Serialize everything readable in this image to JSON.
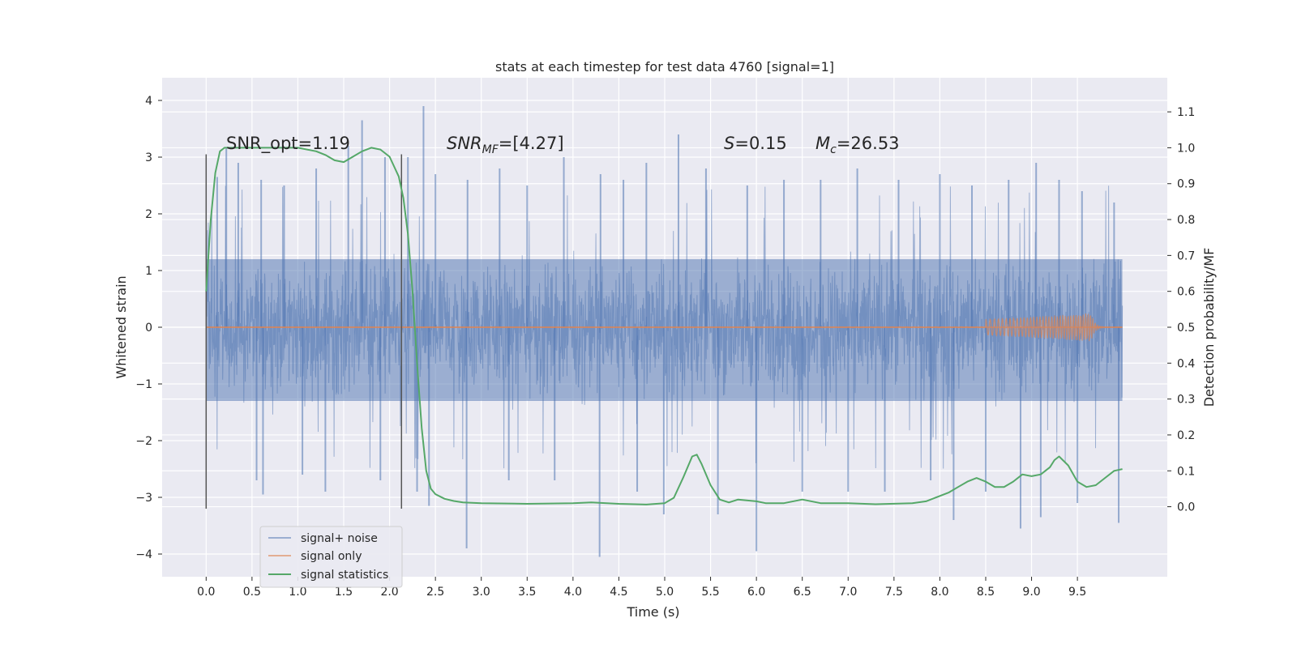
{
  "chart_data": {
    "type": "line",
    "title": "stats at each timestep for test data 4760 [signal=1]",
    "xlabel": "Time (s)",
    "ylabel_left": "Whitened strain",
    "ylabel_right": "Detection probability/MF",
    "xlim": [
      -0.48,
      10.48
    ],
    "ylim_left": [
      -4.4,
      4.4
    ],
    "ylim_right": [
      -0.195,
      1.195
    ],
    "xticks": [
      "0.0",
      "0.5",
      "1.0",
      "1.5",
      "2.0",
      "2.5",
      "3.0",
      "3.5",
      "4.0",
      "4.5",
      "5.0",
      "5.5",
      "6.0",
      "6.5",
      "7.0",
      "7.5",
      "8.0",
      "8.5",
      "9.0",
      "9.5"
    ],
    "xtick_values": [
      0,
      0.5,
      1,
      1.5,
      2,
      2.5,
      3,
      3.5,
      4,
      4.5,
      5,
      5.5,
      6,
      6.5,
      7,
      7.5,
      8,
      8.5,
      9,
      9.5
    ],
    "yticks_left": [
      "−4",
      "−3",
      "−2",
      "−1",
      "0",
      "1",
      "2",
      "3",
      "4"
    ],
    "ytick_left_values": [
      -4,
      -3,
      -2,
      -1,
      0,
      1,
      2,
      3,
      4
    ],
    "yticks_right": [
      "0.0",
      "0.1",
      "0.2",
      "0.3",
      "0.4",
      "0.5",
      "0.6",
      "0.7",
      "0.8",
      "0.9",
      "1.0",
      "1.1"
    ],
    "ytick_right_values": [
      0,
      0.1,
      0.2,
      0.3,
      0.4,
      0.5,
      0.6,
      0.7,
      0.8,
      0.9,
      1.0,
      1.1
    ],
    "annotations": {
      "snr_opt": "SNR_opt=1.19",
      "snr_mf_main": "SNR",
      "snr_mf_sub": "MF",
      "snr_mf_tail": "=[4.27]",
      "s_main": "S",
      "s_tail": "=0.15",
      "mc_main": "M",
      "mc_sub": "c",
      "mc_tail": "=26.53"
    },
    "vlines": [
      {
        "x": 0.0,
        "ymin": -3.2,
        "ymax": 3.05
      },
      {
        "x": 2.13,
        "ymin": -3.2,
        "ymax": 3.05
      }
    ],
    "grid": true,
    "legend_position": "lower-left",
    "series": [
      {
        "name": "signal+ noise",
        "axis": "left",
        "color": "#4c72b0",
        "kind": "noise",
        "x_range": [
          0,
          9.99
        ],
        "typical_envelope": [
          -1.3,
          1.2
        ],
        "peaks": [
          {
            "x": 0.12,
            "y": 2.65
          },
          {
            "x": 0.22,
            "y": 3.15
          },
          {
            "x": 0.35,
            "y": 2.9
          },
          {
            "x": 0.6,
            "y": 2.6
          },
          {
            "x": 0.85,
            "y": 2.5
          },
          {
            "x": 1.2,
            "y": 2.8
          },
          {
            "x": 1.55,
            "y": 3.2
          },
          {
            "x": 1.7,
            "y": 3.65
          },
          {
            "x": 1.95,
            "y": 3.0
          },
          {
            "x": 2.2,
            "y": 3.0
          },
          {
            "x": 2.37,
            "y": 3.9
          },
          {
            "x": 2.5,
            "y": 2.7
          },
          {
            "x": 2.85,
            "y": 2.6
          },
          {
            "x": 3.2,
            "y": 2.8
          },
          {
            "x": 3.5,
            "y": 2.5
          },
          {
            "x": 3.9,
            "y": 3.0
          },
          {
            "x": 4.3,
            "y": 2.7
          },
          {
            "x": 4.55,
            "y": 2.6
          },
          {
            "x": 4.8,
            "y": 2.9
          },
          {
            "x": 5.15,
            "y": 3.4
          },
          {
            "x": 5.45,
            "y": 2.8
          },
          {
            "x": 5.9,
            "y": 2.5
          },
          {
            "x": 6.3,
            "y": 2.6
          },
          {
            "x": 6.7,
            "y": 2.6
          },
          {
            "x": 7.1,
            "y": 2.8
          },
          {
            "x": 7.55,
            "y": 2.6
          },
          {
            "x": 8.0,
            "y": 2.7
          },
          {
            "x": 8.35,
            "y": 2.5
          },
          {
            "x": 8.75,
            "y": 2.6
          },
          {
            "x": 9.05,
            "y": 2.9
          },
          {
            "x": 9.3,
            "y": 2.6
          },
          {
            "x": 9.55,
            "y": 2.4
          },
          {
            "x": 9.9,
            "y": 2.2
          }
        ],
        "troughs": [
          {
            "x": 0.55,
            "y": -2.7
          },
          {
            "x": 0.62,
            "y": -2.95
          },
          {
            "x": 1.05,
            "y": -2.6
          },
          {
            "x": 1.3,
            "y": -2.9
          },
          {
            "x": 1.9,
            "y": -2.7
          },
          {
            "x": 2.3,
            "y": -2.9
          },
          {
            "x": 2.43,
            "y": -3.15
          },
          {
            "x": 2.84,
            "y": -3.9
          },
          {
            "x": 3.3,
            "y": -2.7
          },
          {
            "x": 3.8,
            "y": -2.7
          },
          {
            "x": 4.29,
            "y": -4.05
          },
          {
            "x": 4.7,
            "y": -2.9
          },
          {
            "x": 4.99,
            "y": -3.3
          },
          {
            "x": 5.58,
            "y": -3.3
          },
          {
            "x": 6.0,
            "y": -3.95
          },
          {
            "x": 6.5,
            "y": -2.9
          },
          {
            "x": 7.0,
            "y": -2.9
          },
          {
            "x": 7.4,
            "y": -2.9
          },
          {
            "x": 7.9,
            "y": -2.7
          },
          {
            "x": 8.15,
            "y": -3.4
          },
          {
            "x": 8.5,
            "y": -2.9
          },
          {
            "x": 8.88,
            "y": -3.55
          },
          {
            "x": 9.1,
            "y": -3.35
          },
          {
            "x": 9.5,
            "y": -3.1
          },
          {
            "x": 9.95,
            "y": -3.45
          }
        ]
      },
      {
        "name": "signal only",
        "axis": "left",
        "color": "#dd8452",
        "kind": "chirp",
        "x_range": [
          0,
          9.99
        ],
        "max_amplitude": 0.25,
        "peak_time": 9.65
      },
      {
        "name": "signal statistics",
        "axis": "right",
        "color": "#55a868",
        "kind": "line",
        "x": [
          0.0,
          0.05,
          0.1,
          0.15,
          0.2,
          0.3,
          0.5,
          0.7,
          1.0,
          1.2,
          1.3,
          1.4,
          1.5,
          1.6,
          1.7,
          1.8,
          1.9,
          2.0,
          2.1,
          2.15,
          2.2,
          2.25,
          2.3,
          2.35,
          2.4,
          2.45,
          2.5,
          2.6,
          2.7,
          2.8,
          3.0,
          3.5,
          4.0,
          4.2,
          4.5,
          4.8,
          5.0,
          5.1,
          5.2,
          5.3,
          5.35,
          5.4,
          5.5,
          5.6,
          5.7,
          5.8,
          6.0,
          6.1,
          6.3,
          6.5,
          6.7,
          7.0,
          7.3,
          7.7,
          7.85,
          8.0,
          8.1,
          8.2,
          8.3,
          8.4,
          8.5,
          8.6,
          8.7,
          8.8,
          8.9,
          9.0,
          9.1,
          9.2,
          9.25,
          9.3,
          9.4,
          9.5,
          9.6,
          9.7,
          9.8,
          9.9,
          9.99
        ],
        "y": [
          0.6,
          0.8,
          0.93,
          0.99,
          1.0,
          1.0,
          1.0,
          1.0,
          1.0,
          0.99,
          0.98,
          0.965,
          0.96,
          0.975,
          0.99,
          1.0,
          0.995,
          0.975,
          0.92,
          0.86,
          0.76,
          0.6,
          0.4,
          0.22,
          0.1,
          0.05,
          0.035,
          0.022,
          0.016,
          0.012,
          0.01,
          0.008,
          0.01,
          0.012,
          0.008,
          0.006,
          0.01,
          0.025,
          0.08,
          0.14,
          0.145,
          0.12,
          0.06,
          0.02,
          0.012,
          0.02,
          0.015,
          0.01,
          0.01,
          0.02,
          0.01,
          0.01,
          0.007,
          0.01,
          0.015,
          0.03,
          0.04,
          0.055,
          0.07,
          0.08,
          0.07,
          0.055,
          0.055,
          0.07,
          0.09,
          0.085,
          0.09,
          0.11,
          0.13,
          0.14,
          0.115,
          0.07,
          0.055,
          0.06,
          0.08,
          0.1,
          0.105
        ]
      }
    ]
  },
  "legend": {
    "items": [
      "signal+ noise",
      "signal only",
      "signal statistics"
    ]
  }
}
